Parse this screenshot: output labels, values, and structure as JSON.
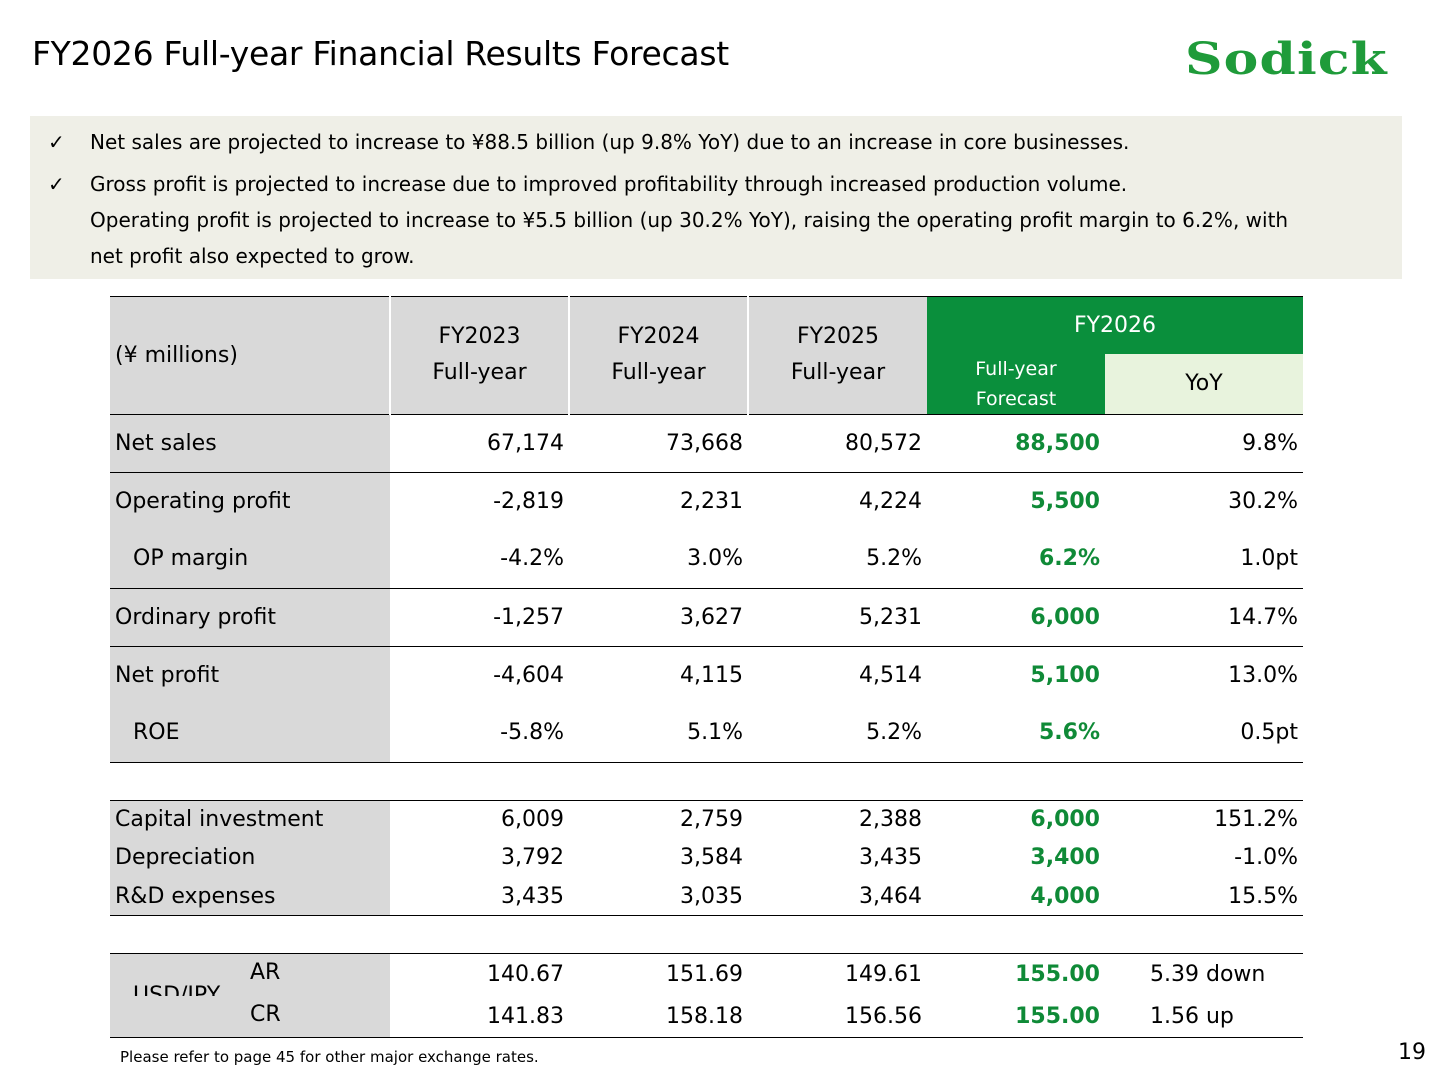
{
  "title": "FY2026 Full-year Financial Results Forecast",
  "logo_text": "Sodick",
  "summary": {
    "check_icon": "✓",
    "bullets": [
      [
        "Net sales are projected to increase to ¥88.5 billion (up 9.8% YoY) due to an increase in core businesses."
      ],
      [
        "Gross profit is projected to increase due to improved profitability through increased production volume.",
        "Operating profit is projected to increase to ¥5.5 billion (up 30.2% YoY), raising the operating profit margin to 6.2%, with",
        "net profit also expected to grow."
      ]
    ]
  },
  "table": {
    "unit": "(¥ millions)",
    "col_fy2023": [
      "FY2023",
      "Full-year"
    ],
    "col_fy2024": [
      "FY2024",
      "Full-year"
    ],
    "col_fy2025": [
      "FY2025",
      "Full-year"
    ],
    "col_fy2026": "FY2026",
    "col_forecast": [
      "Full-year",
      "Forecast"
    ],
    "col_yoy": "YoY",
    "rows": [
      {
        "label": "Net sales",
        "v": [
          "67,174",
          "73,668",
          "80,572",
          "88,500",
          "9.8%"
        ]
      },
      {
        "label": "Operating profit",
        "v": [
          "-2,819",
          "2,231",
          "4,224",
          "5,500",
          "30.2%"
        ]
      },
      {
        "label": "OP margin",
        "v": [
          "-4.2%",
          "3.0%",
          "5.2%",
          "6.2%",
          "1.0pt"
        ]
      },
      {
        "label": "Ordinary profit",
        "v": [
          "-1,257",
          "3,627",
          "5,231",
          "6,000",
          "14.7%"
        ]
      },
      {
        "label": "Net profit",
        "v": [
          "-4,604",
          "4,115",
          "4,514",
          "5,100",
          "13.0%"
        ]
      },
      {
        "label": "ROE",
        "v": [
          "-5.8%",
          "5.1%",
          "5.2%",
          "5.6%",
          "0.5pt"
        ]
      },
      {
        "label": "Capital investment",
        "v": [
          "6,009",
          "2,759",
          "2,388",
          "6,000",
          "151.2%"
        ]
      },
      {
        "label": "Depreciation",
        "v": [
          "3,792",
          "3,584",
          "3,435",
          "3,400",
          "-1.0%"
        ]
      },
      {
        "label": "R&D expenses",
        "v": [
          "3,435",
          "3,035",
          "3,464",
          "4,000",
          "15.5%"
        ]
      }
    ],
    "fx_label": "USD/JPY",
    "fx_rows": [
      {
        "label": "AR",
        "v": [
          "140.67",
          "151.69",
          "149.61",
          "155.00",
          "5.39 down"
        ]
      },
      {
        "label": "CR",
        "v": [
          "141.83",
          "158.18",
          "156.56",
          "155.00",
          "1.56 up"
        ]
      }
    ]
  },
  "note": "Please refer to page 45 for other major exchange rates.",
  "page_number": "19"
}
